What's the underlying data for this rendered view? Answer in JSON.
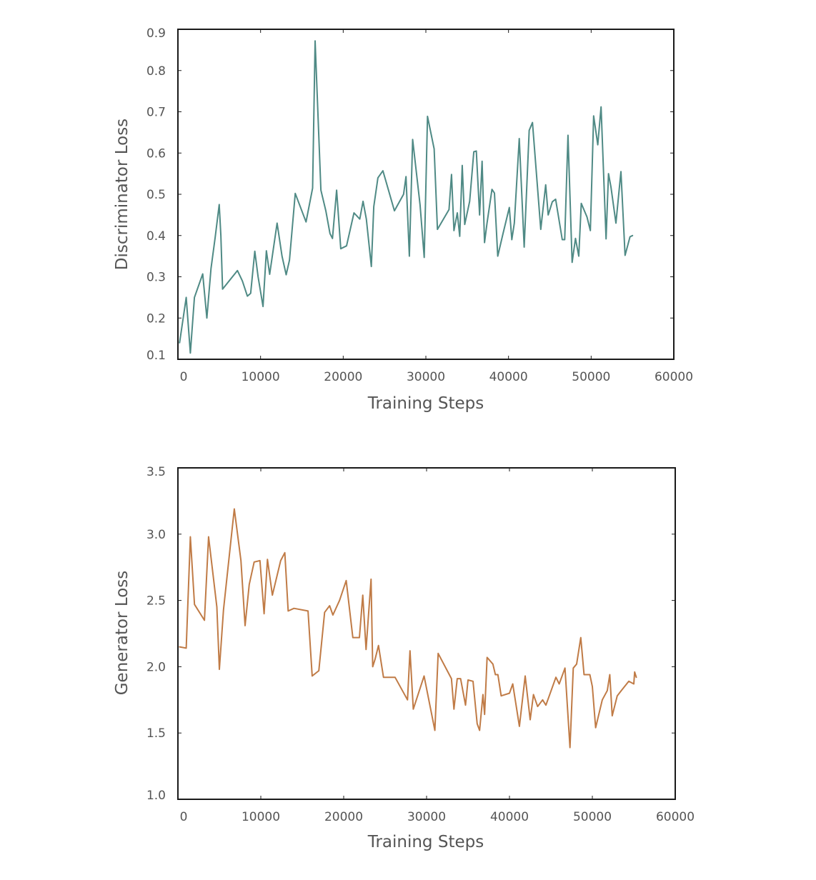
{
  "chart_data": [
    {
      "type": "line",
      "xlabel": "Training Steps",
      "ylabel": "Discriminator Loss",
      "xlim": [
        0,
        60000
      ],
      "ylim": [
        0.1,
        0.9
      ],
      "xticks": [
        0,
        10000,
        20000,
        30000,
        40000,
        50000,
        60000
      ],
      "xtick_labels": [
        "0",
        "10000",
        "20000",
        "30000",
        "40000",
        "50000",
        "60000"
      ],
      "yticks": [
        0.1,
        0.2,
        0.3,
        0.4,
        0.5,
        0.6,
        0.7,
        0.8,
        0.9
      ],
      "ytick_labels": [
        "0.1",
        "0.2",
        "0.3",
        "0.4",
        "0.5",
        "0.6",
        "0.7",
        "0.8",
        "0.9"
      ],
      "grid": false,
      "legend": "none",
      "color": "#4f8a85",
      "series": [
        {
          "x": [
            200,
            1000,
            1500,
            2000,
            3000,
            3500,
            4000,
            4500,
            5000,
            5200,
            5400,
            6400,
            7200,
            7800,
            8400,
            8800,
            9300,
            9700,
            10300,
            10700,
            11100,
            12000,
            12600,
            13100,
            13500,
            14200,
            15500,
            16300,
            16600,
            17300,
            17900,
            18400,
            18700,
            19200,
            19700,
            20400,
            21300,
            22000,
            22400,
            22800,
            23400,
            23700,
            24200,
            24800,
            26200,
            27300,
            27600,
            28000,
            28400,
            29300,
            29800,
            30200,
            31000,
            31400,
            32800,
            33100,
            33400,
            33800,
            34100,
            34400,
            34700,
            35300,
            35800,
            36100,
            36500,
            36800,
            37100,
            37400,
            38000,
            38300,
            38700,
            39300,
            40100,
            40400,
            40700,
            41300,
            41900,
            42500,
            42900,
            43900,
            44500,
            44800,
            45300,
            45700,
            46500,
            46800,
            47200,
            47700,
            48100,
            48500,
            48800,
            49500,
            49900,
            50300,
            50800,
            51200,
            51800,
            52100,
            52400,
            53000,
            53600,
            54100,
            54700,
            55000
          ],
          "y": [
            0.14,
            0.25,
            0.115,
            0.25,
            0.307,
            0.2,
            0.32,
            0.395,
            0.475,
            0.4,
            0.27,
            0.295,
            0.315,
            0.29,
            0.253,
            0.26,
            0.362,
            0.3,
            0.228,
            0.363,
            0.306,
            0.43,
            0.35,
            0.305,
            0.34,
            0.502,
            0.433,
            0.515,
            0.872,
            0.51,
            0.46,
            0.405,
            0.393,
            0.51,
            0.368,
            0.375,
            0.455,
            0.44,
            0.483,
            0.44,
            0.325,
            0.47,
            0.54,
            0.557,
            0.46,
            0.5,
            0.543,
            0.35,
            0.633,
            0.474,
            0.347,
            0.689,
            0.61,
            0.415,
            0.463,
            0.548,
            0.412,
            0.455,
            0.398,
            0.57,
            0.427,
            0.483,
            0.603,
            0.605,
            0.45,
            0.58,
            0.383,
            0.43,
            0.512,
            0.503,
            0.35,
            0.402,
            0.468,
            0.39,
            0.43,
            0.635,
            0.372,
            0.655,
            0.674,
            0.415,
            0.523,
            0.45,
            0.482,
            0.488,
            0.39,
            0.39,
            0.643,
            0.335,
            0.393,
            0.35,
            0.478,
            0.445,
            0.412,
            0.69,
            0.62,
            0.712,
            0.392,
            0.55,
            0.517,
            0.43,
            0.555,
            0.352,
            0.397,
            0.4
          ]
        }
      ]
    },
    {
      "type": "line",
      "xlabel": "Training Steps",
      "ylabel": "Generator Loss",
      "xlim": [
        0,
        60000
      ],
      "ylim": [
        1.0,
        3.5
      ],
      "xticks": [
        0,
        10000,
        20000,
        30000,
        40000,
        50000,
        60000
      ],
      "xtick_labels": [
        "0",
        "10000",
        "20000",
        "30000",
        "40000",
        "50000",
        "60000"
      ],
      "yticks": [
        1.0,
        1.5,
        2.0,
        2.5,
        3.0,
        3.5
      ],
      "ytick_labels": [
        "1.0",
        "1.5",
        "2.0",
        "2.5",
        "3.0",
        "3.5"
      ],
      "grid": false,
      "legend": "none",
      "color": "#c07b46",
      "series": [
        {
          "x": [
            200,
            1000,
            1500,
            2000,
            3200,
            3700,
            4700,
            5000,
            5500,
            6800,
            7600,
            8100,
            8600,
            9200,
            9900,
            10400,
            10800,
            11400,
            12400,
            12900,
            13300,
            14000,
            15700,
            16200,
            17000,
            17700,
            18300,
            18700,
            19500,
            20300,
            21100,
            21900,
            22300,
            22700,
            23300,
            23500,
            23800,
            24200,
            24800,
            26200,
            27700,
            28000,
            28400,
            29700,
            31000,
            31400,
            33000,
            33300,
            33700,
            34100,
            34700,
            35000,
            35600,
            36100,
            36400,
            36800,
            37000,
            37300,
            38000,
            38300,
            38600,
            39000,
            40000,
            40400,
            41200,
            41900,
            42500,
            42900,
            43400,
            44000,
            44400,
            44800,
            45600,
            46000,
            46700,
            47300,
            47700,
            48100,
            48600,
            49000,
            49700,
            50000,
            50400,
            51200,
            51800,
            52100,
            52400,
            53000,
            53500,
            54400,
            55000,
            55100,
            55300
          ],
          "y": [
            2.15,
            2.14,
            2.98,
            2.47,
            2.35,
            2.98,
            2.45,
            1.98,
            2.43,
            3.19,
            2.8,
            2.31,
            2.62,
            2.79,
            2.8,
            2.4,
            2.81,
            2.54,
            2.8,
            2.86,
            2.42,
            2.44,
            2.42,
            1.93,
            1.97,
            2.41,
            2.46,
            2.39,
            2.5,
            2.65,
            2.22,
            2.22,
            2.54,
            2.13,
            2.66,
            2.0,
            2.06,
            2.16,
            1.92,
            1.92,
            1.75,
            2.12,
            1.68,
            1.93,
            1.52,
            2.1,
            1.91,
            1.68,
            1.91,
            1.91,
            1.71,
            1.9,
            1.89,
            1.57,
            1.52,
            1.79,
            1.64,
            2.07,
            2.02,
            1.94,
            1.94,
            1.78,
            1.8,
            1.87,
            1.55,
            1.93,
            1.6,
            1.79,
            1.7,
            1.75,
            1.71,
            1.78,
            1.92,
            1.87,
            1.99,
            1.39,
            1.99,
            2.02,
            2.22,
            1.94,
            1.94,
            1.85,
            1.54,
            1.75,
            1.82,
            1.94,
            1.63,
            1.78,
            1.82,
            1.89,
            1.87,
            1.96,
            1.92
          ]
        }
      ]
    }
  ]
}
